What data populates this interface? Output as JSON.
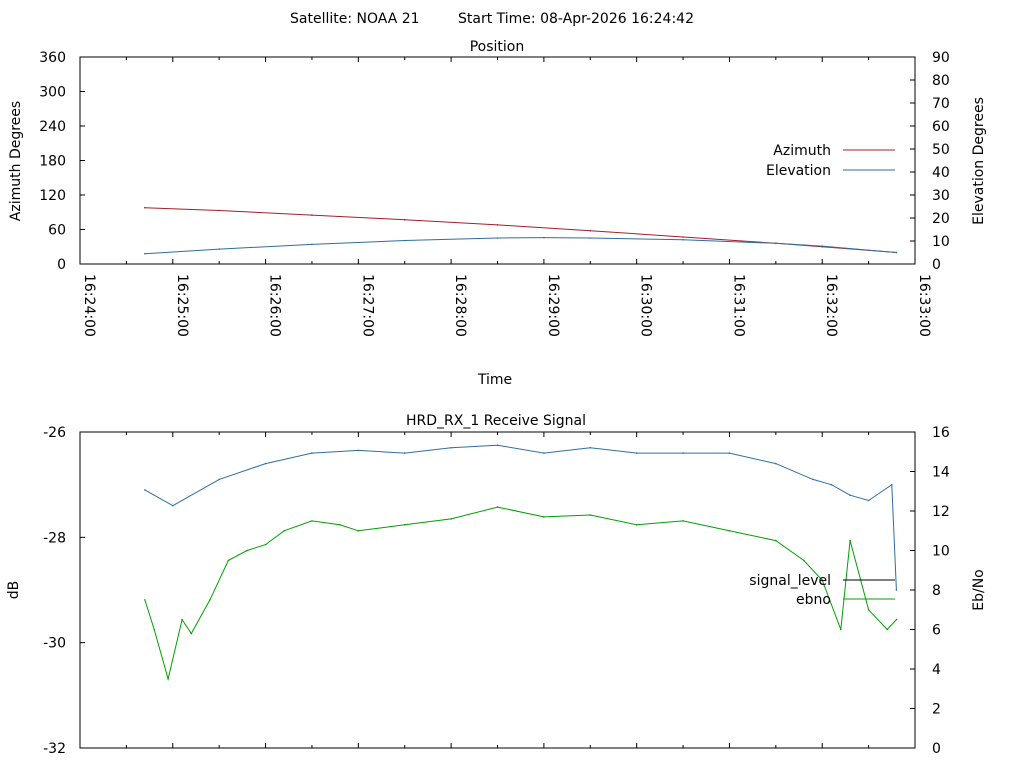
{
  "header": {
    "satellite": "Satellite: NOAA 21",
    "start_time": "Start Time: 08-Apr-2026 16:24:42"
  },
  "chart_data": [
    {
      "type": "line",
      "title": "Position",
      "xlabel": "Time",
      "ylabel": "Azimuth Degrees",
      "y2label": "Elevation Degrees",
      "x_unit": "minutes after 16:24:00",
      "xlim": [
        0,
        9
      ],
      "ylim": [
        0,
        360
      ],
      "y2lim": [
        0,
        90
      ],
      "yticks": [
        0,
        60,
        120,
        180,
        240,
        300,
        360
      ],
      "y2ticks": [
        0,
        10,
        20,
        30,
        40,
        50,
        60,
        70,
        80,
        90
      ],
      "xticks": [
        0,
        1,
        2,
        3,
        4,
        5,
        6,
        7,
        8,
        9
      ],
      "xtick_labels": [
        "16:24:00",
        "16:25:00",
        "16:26:00",
        "16:27:00",
        "16:28:00",
        "16:29:00",
        "16:30:00",
        "16:31:00",
        "16:32:00",
        "16:33:00"
      ],
      "legend_position": "right",
      "series": [
        {
          "name": "Azimuth",
          "axis": "left",
          "color": "#a0202a",
          "x": [
            0.7,
            1.5,
            2.5,
            3.5,
            4.5,
            5.5,
            6.5,
            7.5,
            8.0,
            8.8
          ],
          "y": [
            98,
            93,
            85,
            77,
            68,
            58,
            47,
            36,
            30,
            20
          ]
        },
        {
          "name": "Elevation",
          "axis": "right",
          "color": "#2f6ea0",
          "x": [
            0.7,
            1.5,
            2.5,
            3.5,
            4.5,
            5.0,
            5.5,
            6.5,
            7.5,
            8.0,
            8.8
          ],
          "y": [
            4.5,
            6.5,
            8.5,
            10.2,
            11.3,
            11.5,
            11.3,
            10.5,
            9.0,
            7.8,
            5.0
          ]
        }
      ]
    },
    {
      "type": "line",
      "title": "HRD_RX_1 Receive Signal",
      "xlabel": "",
      "ylabel": "dB",
      "y2label": "Eb/No",
      "x_unit": "minutes after 16:24:00",
      "xlim": [
        0,
        9
      ],
      "ylim": [
        -32,
        -26
      ],
      "y2lim": [
        0,
        16
      ],
      "yticks": [
        -32,
        -30,
        -28,
        -26
      ],
      "y2ticks": [
        0,
        2,
        4,
        6,
        8,
        10,
        12,
        14,
        16
      ],
      "xticks": [
        0,
        1,
        2,
        3,
        4,
        5,
        6,
        7,
        8,
        9
      ],
      "legend_position": "right",
      "series": [
        {
          "name": "signal_level",
          "axis": "left",
          "color": "#2f6ea0",
          "x": [
            0.7,
            1.0,
            1.5,
            2.0,
            2.5,
            3.0,
            3.5,
            4.0,
            4.5,
            5.0,
            5.5,
            6.0,
            6.5,
            7.0,
            7.5,
            7.9,
            8.1,
            8.3,
            8.5,
            8.75,
            8.8
          ],
          "y": [
            -27.1,
            -27.4,
            -26.9,
            -26.6,
            -26.4,
            -26.35,
            -26.4,
            -26.3,
            -26.25,
            -26.4,
            -26.3,
            -26.4,
            -26.4,
            -26.4,
            -26.6,
            -26.9,
            -27.0,
            -27.2,
            -27.3,
            -27.0,
            -29.0
          ]
        },
        {
          "name": "ebno",
          "axis": "right",
          "color": "#00a000",
          "x": [
            0.7,
            0.8,
            0.95,
            1.1,
            1.2,
            1.4,
            1.6,
            1.8,
            2.0,
            2.2,
            2.5,
            2.8,
            3.0,
            3.5,
            4.0,
            4.5,
            5.0,
            5.5,
            6.0,
            6.5,
            7.0,
            7.5,
            7.8,
            8.0,
            8.2,
            8.3,
            8.5,
            8.7,
            8.8
          ],
          "y": [
            7.5,
            6.0,
            3.5,
            6.5,
            5.8,
            7.5,
            9.5,
            10.0,
            10.3,
            11.0,
            11.5,
            11.3,
            11.0,
            11.3,
            11.6,
            12.2,
            11.7,
            11.8,
            11.3,
            11.5,
            11.0,
            10.5,
            9.5,
            8.5,
            6.0,
            10.5,
            7.0,
            6.0,
            6.5
          ]
        }
      ]
    }
  ]
}
